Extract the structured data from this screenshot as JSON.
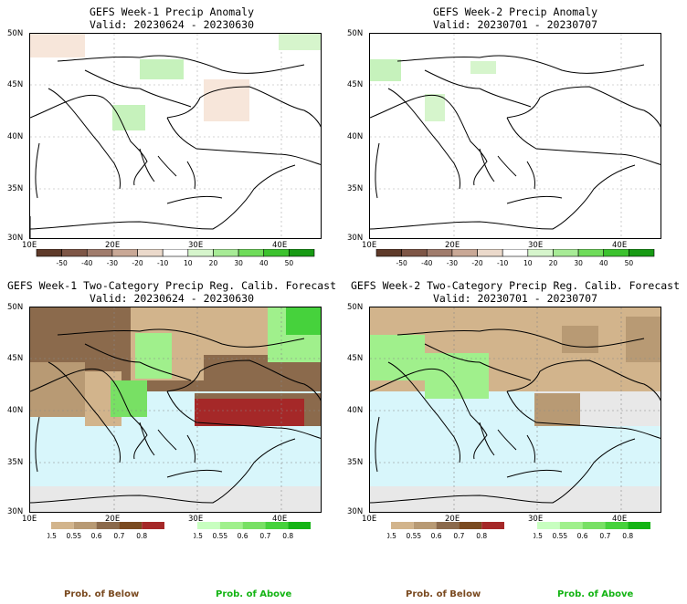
{
  "panels": [
    {
      "title": "GEFS Week-1 Precip Anomaly",
      "valid": "Valid: 20230624 - 20230630"
    },
    {
      "title": "GEFS Week-2 Precip Anomaly",
      "valid": "Valid: 20230701 - 20230707"
    },
    {
      "title": "GEFS Week-1 Two-Category Precip Reg. Calib. Forecast",
      "valid": "Valid: 20230624 - 20230630"
    },
    {
      "title": "GEFS Week-2 Two-Category Precip Reg. Calib. Forecast",
      "valid": "Valid: 20230701 - 20230707"
    }
  ],
  "lat_labels": [
    "50N",
    "45N",
    "40N",
    "35N",
    "30N"
  ],
  "lon_labels": [
    "10E",
    "20E",
    "30E",
    "40E"
  ],
  "anomaly_colorbar": {
    "labels": [
      "-50",
      "-40",
      "-30",
      "-20",
      "-10",
      "10",
      "20",
      "30",
      "40",
      "50"
    ],
    "colors": [
      "#5e3a2a",
      "#7e5646",
      "#a07c6c",
      "#c9a896",
      "#ebd9cb",
      "#ffffff",
      "#d6f5cc",
      "#a7eb96",
      "#6fdc5a",
      "#3cc22e",
      "#179a14"
    ]
  },
  "below_colorbar": {
    "labels": [
      "0.5",
      "0.55",
      "0.6",
      "0.7",
      "0.8"
    ],
    "colors": [
      "#d2b48c",
      "#b89a74",
      "#8b6a4c",
      "#7a4a20",
      "#a52828"
    ]
  },
  "above_colorbar": {
    "labels": [
      "0.5",
      "0.55",
      "0.6",
      "0.7",
      "0.8"
    ],
    "colors": [
      "#c8ffc0",
      "#a0f08c",
      "#78e064",
      "#46d23c",
      "#14b414"
    ]
  },
  "footer": {
    "below": "Prob. of Below",
    "above": "Prob. of Above"
  },
  "colors": {
    "sea": "#d8f6fb",
    "gray_land": "#e8e8e8",
    "coast": "#000000"
  }
}
